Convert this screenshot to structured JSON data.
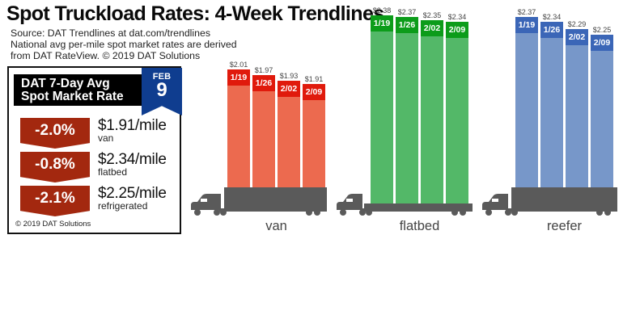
{
  "header": {
    "title": "Spot Truckload Rates: 4-Week Trendlines",
    "source_lines": [
      "Source: DAT Trendlines at dat.com/trendlines",
      "National avg per-mile spot market rates are derived",
      "from DAT RateView. © 2019 DAT Solutions"
    ]
  },
  "summary": {
    "heading_line1": "DAT 7-Day Avg",
    "heading_line2": "Spot Market Rate",
    "date_month": "FEB",
    "date_day": "9",
    "rates": [
      {
        "change": "-2.0%",
        "rate": "$1.91/mile",
        "equipment": "van"
      },
      {
        "change": "-0.8%",
        "rate": "$2.34/mile",
        "equipment": "flatbed"
      },
      {
        "change": "-2.1%",
        "rate": "$2.25/mile",
        "equipment": "refrigerated"
      }
    ],
    "copyright": "© 2019 DAT Solutions",
    "colors": {
      "badge": "#a3280f",
      "ribbon": "#0f3d8f",
      "header": "#000000"
    }
  },
  "chart_data": {
    "type": "bar",
    "title": "Spot Truckload Rates: 4-Week Trendlines",
    "xlabel": "",
    "ylabel": "",
    "grid": false,
    "legend": "none",
    "categories": [
      "1/19",
      "1/26",
      "2/02",
      "2/09"
    ],
    "series": [
      {
        "name": "van",
        "values": [
          2.01,
          1.97,
          1.93,
          1.91
        ],
        "labels": [
          "$2.01",
          "$1.97",
          "$1.93",
          "$1.91"
        ],
        "bar_color": "#ec6a4f",
        "head_color": "#e01a0c"
      },
      {
        "name": "flatbed",
        "values": [
          2.38,
          2.37,
          2.35,
          2.34
        ],
        "labels": [
          "$2.38",
          "$2.37",
          "$2.35",
          "$2.34"
        ],
        "bar_color": "#53b868",
        "head_color": "#0c9c1a"
      },
      {
        "name": "reefer",
        "values": [
          2.37,
          2.34,
          2.29,
          2.25
        ],
        "labels": [
          "$2.37",
          "$2.34",
          "$2.29",
          "$2.25"
        ],
        "bar_color": "#7797c9",
        "head_color": "#3b66b7"
      }
    ],
    "truck_color": "#5a5a5a"
  }
}
